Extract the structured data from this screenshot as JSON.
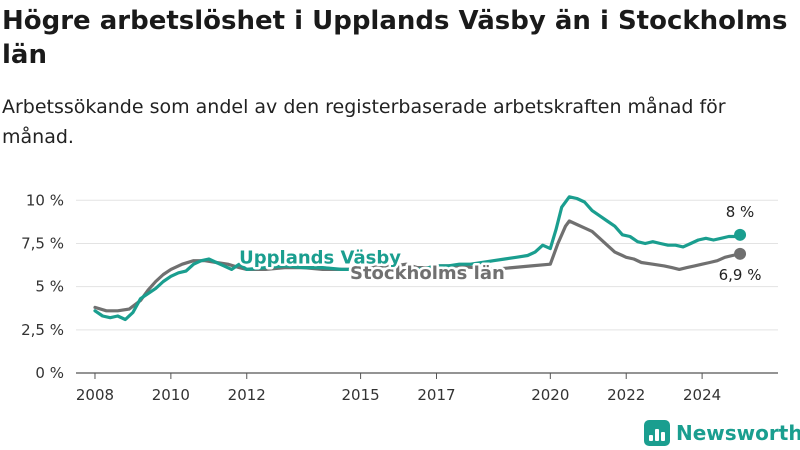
{
  "title": "Högre arbetslöshet i Upplands Väsby än i Stockholms län",
  "subtitle": "Arbetssökande som andel av den registerbaserade arbetskraften månad för månad.",
  "brand": {
    "name": "Newsworthy",
    "icon": "newsworthy-logo-icon",
    "color": "#1a9e8f"
  },
  "chart_data": {
    "type": "line",
    "ylim": [
      0,
      11
    ],
    "xlim": [
      2007.5,
      2026.0
    ],
    "y_ticks": [
      {
        "value": 0,
        "label": "0 %"
      },
      {
        "value": 2.5,
        "label": "2,5 %"
      },
      {
        "value": 5,
        "label": "5 %"
      },
      {
        "value": 7.5,
        "label": "7,5 %"
      },
      {
        "value": 10,
        "label": "10 %"
      }
    ],
    "x_ticks": [
      {
        "value": 2008,
        "label": "2008"
      },
      {
        "value": 2010,
        "label": "2010"
      },
      {
        "value": 2012,
        "label": "2012"
      },
      {
        "value": 2015,
        "label": "2015"
      },
      {
        "value": 2017,
        "label": "2017"
      },
      {
        "value": 2020,
        "label": "2020"
      },
      {
        "value": 2022,
        "label": "2022"
      },
      {
        "value": 2024,
        "label": "2024"
      }
    ],
    "grid": true,
    "series": [
      {
        "name": "Stockholms län",
        "color": "#707070",
        "end_label": "6,9 %",
        "x": [
          2008.0,
          2008.3,
          2008.6,
          2008.9,
          2009.2,
          2009.4,
          2009.6,
          2009.8,
          2010.0,
          2010.3,
          2010.6,
          2010.9,
          2011.2,
          2011.5,
          2011.8,
          2012.0,
          2012.5,
          2013.0,
          2013.5,
          2014.0,
          2014.5,
          2015.0,
          2015.3,
          2015.6,
          2015.9,
          2016.2,
          2016.5,
          2016.8,
          2017.0,
          2017.5,
          2018.0,
          2018.5,
          2019.0,
          2019.5,
          2020.0,
          2020.2,
          2020.4,
          2020.5,
          2020.7,
          2020.9,
          2021.1,
          2021.3,
          2021.5,
          2021.7,
          2021.9,
          2022.0,
          2022.2,
          2022.4,
          2022.7,
          2023.0,
          2023.2,
          2023.4,
          2023.6,
          2023.8,
          2024.0,
          2024.2,
          2024.4,
          2024.6,
          2024.8,
          2025.0
        ],
        "values": [
          3.8,
          3.6,
          3.6,
          3.7,
          4.2,
          4.8,
          5.3,
          5.7,
          6.0,
          6.3,
          6.5,
          6.5,
          6.4,
          6.3,
          6.1,
          6.0,
          6.0,
          6.1,
          6.1,
          6.0,
          6.0,
          6.0,
          6.1,
          6.2,
          6.2,
          6.3,
          6.1,
          6.1,
          6.2,
          6.2,
          6.1,
          6.0,
          6.1,
          6.2,
          6.3,
          7.5,
          8.5,
          8.8,
          8.6,
          8.4,
          8.2,
          7.8,
          7.4,
          7.0,
          6.8,
          6.7,
          6.6,
          6.4,
          6.3,
          6.2,
          6.1,
          6.0,
          6.1,
          6.2,
          6.3,
          6.4,
          6.5,
          6.7,
          6.8,
          6.9
        ]
      },
      {
        "name": "Upplands Väsby",
        "color": "#1a9e8f",
        "end_label": "8 %",
        "x": [
          2008.0,
          2008.2,
          2008.4,
          2008.6,
          2008.8,
          2009.0,
          2009.2,
          2009.4,
          2009.6,
          2009.8,
          2010.0,
          2010.2,
          2010.4,
          2010.6,
          2010.8,
          2011.0,
          2011.2,
          2011.4,
          2011.6,
          2011.8,
          2012.0,
          2012.5,
          2013.0,
          2013.5,
          2014.0,
          2014.5,
          2015.0,
          2015.3,
          2015.6,
          2015.9,
          2016.2,
          2016.5,
          2016.8,
          2017.0,
          2017.3,
          2017.6,
          2017.9,
          2018.2,
          2018.5,
          2018.8,
          2019.1,
          2019.4,
          2019.6,
          2019.8,
          2020.0,
          2020.15,
          2020.3,
          2020.5,
          2020.7,
          2020.9,
          2021.1,
          2021.3,
          2021.5,
          2021.7,
          2021.9,
          2022.1,
          2022.3,
          2022.5,
          2022.7,
          2022.9,
          2023.1,
          2023.3,
          2023.5,
          2023.7,
          2023.9,
          2024.1,
          2024.3,
          2024.5,
          2024.7,
          2024.9,
          2025.0
        ],
        "values": [
          3.6,
          3.3,
          3.2,
          3.3,
          3.1,
          3.5,
          4.3,
          4.6,
          4.9,
          5.3,
          5.6,
          5.8,
          5.9,
          6.3,
          6.5,
          6.6,
          6.4,
          6.2,
          6.0,
          6.3,
          6.0,
          6.1,
          6.2,
          6.1,
          6.1,
          6.0,
          6.0,
          6.0,
          5.9,
          6.1,
          6.0,
          6.0,
          6.1,
          6.2,
          6.2,
          6.3,
          6.3,
          6.4,
          6.5,
          6.6,
          6.7,
          6.8,
          7.0,
          7.4,
          7.2,
          8.3,
          9.6,
          10.2,
          10.1,
          9.9,
          9.4,
          9.1,
          8.8,
          8.5,
          8.0,
          7.9,
          7.6,
          7.5,
          7.6,
          7.5,
          7.4,
          7.4,
          7.3,
          7.5,
          7.7,
          7.8,
          7.7,
          7.8,
          7.9,
          7.9,
          8.0
        ]
      }
    ]
  }
}
